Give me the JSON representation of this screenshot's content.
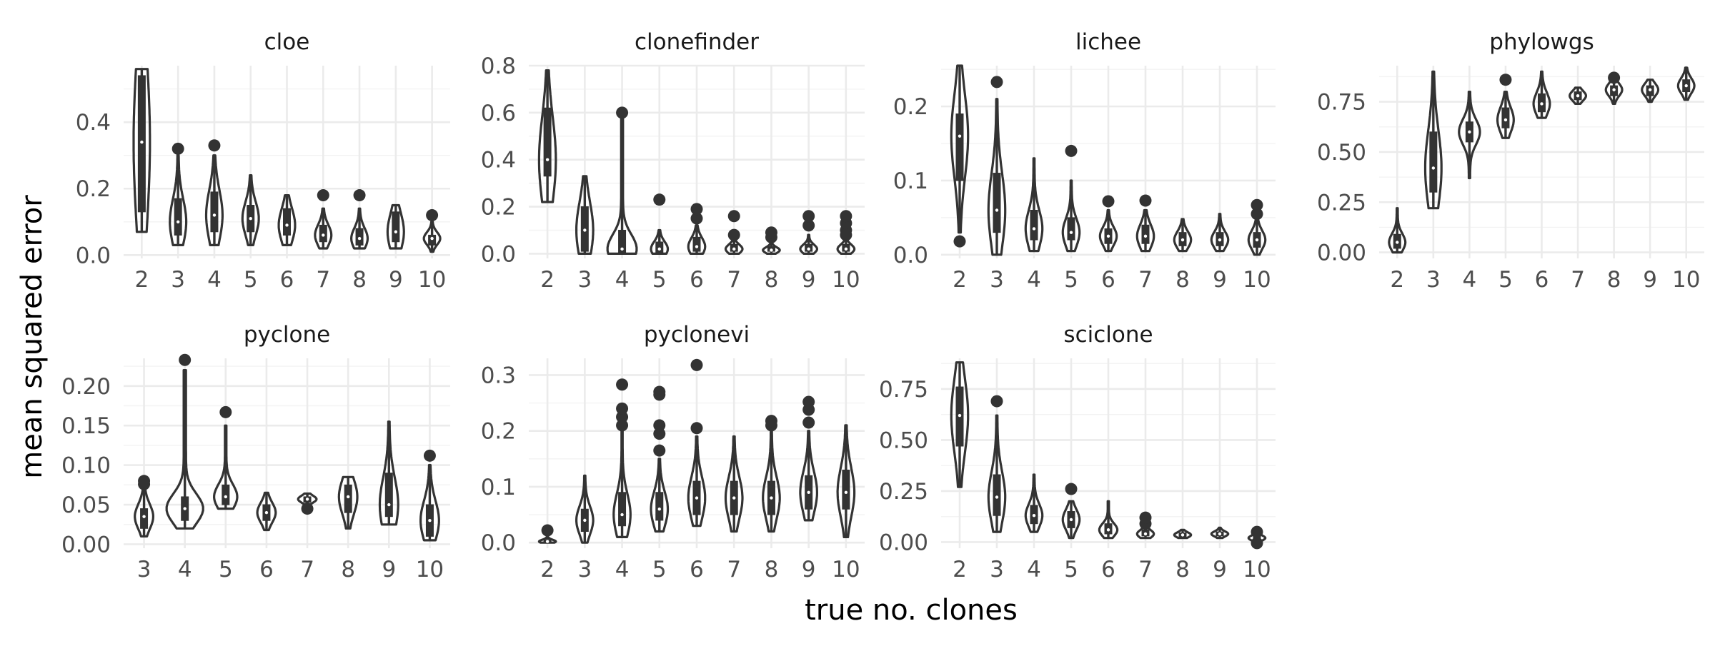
{
  "xlabel": "true no. clones",
  "ylabel": "mean squared error",
  "colors": {
    "ink": "#333333",
    "grid": "#ebebeb",
    "background": "#ffffff"
  },
  "chart_data": [
    {
      "type": "violin",
      "title": "cloe",
      "categories": [
        "2",
        "3",
        "4",
        "5",
        "6",
        "7",
        "8",
        "9",
        "10"
      ],
      "ylim": [
        -0.01,
        0.57
      ],
      "yticks": [
        0.0,
        0.2,
        0.4
      ],
      "ytick_labels": [
        "0.0",
        "0.2",
        "0.4"
      ],
      "series": [
        {
          "x": "2",
          "min": 0.07,
          "max": 0.56,
          "q1": 0.13,
          "median": 0.34,
          "q3": 0.54,
          "outliers": []
        },
        {
          "x": "3",
          "min": 0.03,
          "max": 0.3,
          "q1": 0.06,
          "median": 0.1,
          "q3": 0.17,
          "outliers": [
            0.32
          ]
        },
        {
          "x": "4",
          "min": 0.03,
          "max": 0.3,
          "q1": 0.07,
          "median": 0.12,
          "q3": 0.19,
          "outliers": [
            0.33
          ]
        },
        {
          "x": "5",
          "min": 0.03,
          "max": 0.24,
          "q1": 0.07,
          "median": 0.11,
          "q3": 0.15,
          "outliers": []
        },
        {
          "x": "6",
          "min": 0.03,
          "max": 0.18,
          "q1": 0.06,
          "median": 0.09,
          "q3": 0.14,
          "outliers": []
        },
        {
          "x": "7",
          "min": 0.02,
          "max": 0.14,
          "q1": 0.04,
          "median": 0.06,
          "q3": 0.09,
          "outliers": [
            0.18
          ]
        },
        {
          "x": "8",
          "min": 0.02,
          "max": 0.14,
          "q1": 0.03,
          "median": 0.05,
          "q3": 0.08,
          "outliers": [
            0.18
          ]
        },
        {
          "x": "9",
          "min": 0.02,
          "max": 0.15,
          "q1": 0.04,
          "median": 0.07,
          "q3": 0.13,
          "outliers": []
        },
        {
          "x": "10",
          "min": 0.01,
          "max": 0.1,
          "q1": 0.03,
          "median": 0.05,
          "q3": 0.06,
          "outliers": [
            0.12
          ]
        }
      ]
    },
    {
      "type": "violin",
      "title": "clonefinder",
      "categories": [
        "2",
        "3",
        "4",
        "5",
        "6",
        "7",
        "8",
        "9",
        "10"
      ],
      "ylim": [
        -0.02,
        0.8
      ],
      "yticks": [
        0.0,
        0.2,
        0.4,
        0.6,
        0.8
      ],
      "ytick_labels": [
        "0.0",
        "0.2",
        "0.4",
        "0.6",
        "0.8"
      ],
      "series": [
        {
          "x": "2",
          "min": 0.22,
          "max": 0.78,
          "q1": 0.33,
          "median": 0.4,
          "q3": 0.62,
          "outliers": []
        },
        {
          "x": "3",
          "min": 0.0,
          "max": 0.33,
          "q1": 0.01,
          "median": 0.1,
          "q3": 0.2,
          "outliers": []
        },
        {
          "x": "4",
          "min": 0.0,
          "max": 0.58,
          "q1": 0.0,
          "median": 0.02,
          "q3": 0.1,
          "outliers": [
            0.6
          ]
        },
        {
          "x": "5",
          "min": 0.0,
          "max": 0.1,
          "q1": 0.0,
          "median": 0.02,
          "q3": 0.05,
          "outliers": [
            0.23
          ]
        },
        {
          "x": "6",
          "min": 0.0,
          "max": 0.12,
          "q1": 0.01,
          "median": 0.03,
          "q3": 0.07,
          "outliers": [
            0.15,
            0.19
          ]
        },
        {
          "x": "7",
          "min": 0.0,
          "max": 0.06,
          "q1": 0.01,
          "median": 0.02,
          "q3": 0.04,
          "outliers": [
            0.08,
            0.16
          ]
        },
        {
          "x": "8",
          "min": 0.0,
          "max": 0.05,
          "q1": 0.01,
          "median": 0.015,
          "q3": 0.03,
          "outliers": [
            0.07,
            0.09
          ]
        },
        {
          "x": "9",
          "min": 0.0,
          "max": 0.08,
          "q1": 0.01,
          "median": 0.02,
          "q3": 0.04,
          "outliers": [
            0.12,
            0.16
          ]
        },
        {
          "x": "10",
          "min": 0.0,
          "max": 0.06,
          "q1": 0.01,
          "median": 0.02,
          "q3": 0.04,
          "outliers": [
            0.08,
            0.1,
            0.13,
            0.16
          ]
        }
      ]
    },
    {
      "type": "violin",
      "title": "lichee",
      "categories": [
        "2",
        "3",
        "4",
        "5",
        "6",
        "7",
        "8",
        "9",
        "10"
      ],
      "ylim": [
        -0.005,
        0.255
      ],
      "yticks": [
        0.0,
        0.1,
        0.2
      ],
      "ytick_labels": [
        "0.0",
        "0.1",
        "0.2"
      ],
      "series": [
        {
          "x": "2",
          "min": 0.03,
          "max": 0.255,
          "q1": 0.1,
          "median": 0.16,
          "q3": 0.19,
          "outliers": [
            0.018
          ]
        },
        {
          "x": "3",
          "min": 0.0,
          "max": 0.21,
          "q1": 0.03,
          "median": 0.06,
          "q3": 0.11,
          "outliers": [
            0.233
          ]
        },
        {
          "x": "4",
          "min": 0.005,
          "max": 0.13,
          "q1": 0.02,
          "median": 0.035,
          "q3": 0.06,
          "outliers": []
        },
        {
          "x": "5",
          "min": 0.005,
          "max": 0.1,
          "q1": 0.02,
          "median": 0.03,
          "q3": 0.05,
          "outliers": [
            0.14
          ]
        },
        {
          "x": "6",
          "min": 0.005,
          "max": 0.06,
          "q1": 0.015,
          "median": 0.025,
          "q3": 0.035,
          "outliers": [
            0.072
          ]
        },
        {
          "x": "7",
          "min": 0.005,
          "max": 0.06,
          "q1": 0.015,
          "median": 0.025,
          "q3": 0.04,
          "outliers": [
            0.073
          ]
        },
        {
          "x": "8",
          "min": 0.005,
          "max": 0.048,
          "q1": 0.012,
          "median": 0.02,
          "q3": 0.03,
          "outliers": []
        },
        {
          "x": "9",
          "min": 0.005,
          "max": 0.055,
          "q1": 0.012,
          "median": 0.02,
          "q3": 0.03,
          "outliers": []
        },
        {
          "x": "10",
          "min": 0.0,
          "max": 0.05,
          "q1": 0.01,
          "median": 0.02,
          "q3": 0.03,
          "outliers": [
            0.055,
            0.067
          ]
        }
      ]
    },
    {
      "type": "violin",
      "title": "phylowgs",
      "categories": [
        "2",
        "3",
        "4",
        "5",
        "6",
        "7",
        "8",
        "9",
        "10"
      ],
      "ylim": [
        -0.03,
        0.93
      ],
      "yticks": [
        0.0,
        0.25,
        0.5,
        0.75
      ],
      "ytick_labels": [
        "0.00",
        "0.25",
        "0.50",
        "0.75"
      ],
      "series": [
        {
          "x": "2",
          "min": 0.0,
          "max": 0.22,
          "q1": 0.02,
          "median": 0.05,
          "q3": 0.09,
          "outliers": []
        },
        {
          "x": "3",
          "min": 0.22,
          "max": 0.9,
          "q1": 0.3,
          "median": 0.42,
          "q3": 0.6,
          "outliers": []
        },
        {
          "x": "4",
          "min": 0.37,
          "max": 0.8,
          "q1": 0.55,
          "median": 0.6,
          "q3": 0.65,
          "outliers": []
        },
        {
          "x": "5",
          "min": 0.57,
          "max": 0.8,
          "q1": 0.62,
          "median": 0.66,
          "q3": 0.72,
          "outliers": [
            0.86
          ]
        },
        {
          "x": "6",
          "min": 0.67,
          "max": 0.9,
          "q1": 0.7,
          "median": 0.74,
          "q3": 0.79,
          "outliers": []
        },
        {
          "x": "7",
          "min": 0.74,
          "max": 0.82,
          "q1": 0.76,
          "median": 0.78,
          "q3": 0.8,
          "outliers": []
        },
        {
          "x": "8",
          "min": 0.74,
          "max": 0.85,
          "q1": 0.78,
          "median": 0.81,
          "q3": 0.83,
          "outliers": [
            0.87
          ]
        },
        {
          "x": "9",
          "min": 0.75,
          "max": 0.86,
          "q1": 0.78,
          "median": 0.81,
          "q3": 0.83,
          "outliers": []
        },
        {
          "x": "10",
          "min": 0.76,
          "max": 0.92,
          "q1": 0.8,
          "median": 0.83,
          "q3": 0.86,
          "outliers": []
        }
      ]
    },
    {
      "type": "violin",
      "title": "pyclone",
      "categories": [
        "3",
        "4",
        "5",
        "6",
        "7",
        "8",
        "9",
        "10"
      ],
      "ylim": [
        -0.005,
        0.235
      ],
      "yticks": [
        0.0,
        0.05,
        0.1,
        0.15,
        0.2
      ],
      "ytick_labels": [
        "0.00",
        "0.05",
        "0.10",
        "0.15",
        "0.20"
      ],
      "series": [
        {
          "x": "3",
          "min": 0.01,
          "max": 0.07,
          "q1": 0.02,
          "median": 0.035,
          "q3": 0.045,
          "outliers": [
            0.076,
            0.08
          ]
        },
        {
          "x": "4",
          "min": 0.02,
          "max": 0.22,
          "q1": 0.03,
          "median": 0.045,
          "q3": 0.06,
          "outliers": [
            0.233
          ]
        },
        {
          "x": "5",
          "min": 0.045,
          "max": 0.15,
          "q1": 0.05,
          "median": 0.06,
          "q3": 0.075,
          "outliers": [
            0.167
          ]
        },
        {
          "x": "6",
          "min": 0.018,
          "max": 0.065,
          "q1": 0.03,
          "median": 0.04,
          "q3": 0.05,
          "outliers": []
        },
        {
          "x": "7",
          "min": 0.048,
          "max": 0.064,
          "q1": 0.053,
          "median": 0.057,
          "q3": 0.06,
          "outliers": [
            0.045
          ]
        },
        {
          "x": "8",
          "min": 0.02,
          "max": 0.085,
          "q1": 0.04,
          "median": 0.06,
          "q3": 0.075,
          "outliers": []
        },
        {
          "x": "9",
          "min": 0.025,
          "max": 0.155,
          "q1": 0.035,
          "median": 0.05,
          "q3": 0.09,
          "outliers": []
        },
        {
          "x": "10",
          "min": 0.005,
          "max": 0.1,
          "q1": 0.01,
          "median": 0.03,
          "q3": 0.05,
          "outliers": [
            0.112
          ]
        }
      ]
    },
    {
      "type": "violin",
      "title": "pyclonevi",
      "categories": [
        "2",
        "3",
        "4",
        "5",
        "6",
        "7",
        "8",
        "9",
        "10"
      ],
      "ylim": [
        -0.01,
        0.33
      ],
      "yticks": [
        0.0,
        0.1,
        0.2,
        0.3
      ],
      "ytick_labels": [
        "0.0",
        "0.1",
        "0.2",
        "0.3"
      ],
      "series": [
        {
          "x": "2",
          "min": 0.0,
          "max": 0.01,
          "q1": 0.0,
          "median": 0.002,
          "q3": 0.005,
          "outliers": [
            0.022
          ]
        },
        {
          "x": "3",
          "min": 0.0,
          "max": 0.12,
          "q1": 0.02,
          "median": 0.04,
          "q3": 0.06,
          "outliers": []
        },
        {
          "x": "4",
          "min": 0.01,
          "max": 0.2,
          "q1": 0.03,
          "median": 0.05,
          "q3": 0.09,
          "outliers": [
            0.21,
            0.225,
            0.24,
            0.283
          ]
        },
        {
          "x": "5",
          "min": 0.02,
          "max": 0.15,
          "q1": 0.04,
          "median": 0.06,
          "q3": 0.09,
          "outliers": [
            0.165,
            0.195,
            0.21,
            0.265,
            0.27
          ]
        },
        {
          "x": "6",
          "min": 0.03,
          "max": 0.19,
          "q1": 0.05,
          "median": 0.08,
          "q3": 0.11,
          "outliers": [
            0.205,
            0.318
          ]
        },
        {
          "x": "7",
          "min": 0.02,
          "max": 0.19,
          "q1": 0.05,
          "median": 0.08,
          "q3": 0.11,
          "outliers": []
        },
        {
          "x": "8",
          "min": 0.02,
          "max": 0.2,
          "q1": 0.05,
          "median": 0.08,
          "q3": 0.11,
          "outliers": [
            0.21,
            0.218
          ]
        },
        {
          "x": "9",
          "min": 0.04,
          "max": 0.2,
          "q1": 0.06,
          "median": 0.09,
          "q3": 0.12,
          "outliers": [
            0.215,
            0.238,
            0.252
          ]
        },
        {
          "x": "10",
          "min": 0.01,
          "max": 0.21,
          "q1": 0.06,
          "median": 0.09,
          "q3": 0.13,
          "outliers": []
        }
      ]
    },
    {
      "type": "violin",
      "title": "sciclone",
      "categories": [
        "2",
        "3",
        "4",
        "5",
        "6",
        "7",
        "8",
        "9",
        "10"
      ],
      "ylim": [
        -0.03,
        0.9
      ],
      "yticks": [
        0.0,
        0.25,
        0.5,
        0.75
      ],
      "ytick_labels": [
        "0.00",
        "0.25",
        "0.50",
        "0.75"
      ],
      "series": [
        {
          "x": "2",
          "min": 0.27,
          "max": 0.88,
          "q1": 0.47,
          "median": 0.62,
          "q3": 0.76,
          "outliers": []
        },
        {
          "x": "3",
          "min": 0.05,
          "max": 0.62,
          "q1": 0.13,
          "median": 0.22,
          "q3": 0.33,
          "outliers": [
            0.69
          ]
        },
        {
          "x": "4",
          "min": 0.05,
          "max": 0.33,
          "q1": 0.09,
          "median": 0.13,
          "q3": 0.18,
          "outliers": []
        },
        {
          "x": "5",
          "min": 0.02,
          "max": 0.2,
          "q1": 0.07,
          "median": 0.11,
          "q3": 0.15,
          "outliers": [
            0.26
          ]
        },
        {
          "x": "6",
          "min": 0.02,
          "max": 0.2,
          "q1": 0.04,
          "median": 0.06,
          "q3": 0.09,
          "outliers": []
        },
        {
          "x": "7",
          "min": 0.02,
          "max": 0.1,
          "q1": 0.03,
          "median": 0.04,
          "q3": 0.06,
          "outliers": [
            0.09,
            0.12
          ]
        },
        {
          "x": "8",
          "min": 0.02,
          "max": 0.06,
          "q1": 0.025,
          "median": 0.035,
          "q3": 0.045,
          "outliers": []
        },
        {
          "x": "9",
          "min": 0.02,
          "max": 0.07,
          "q1": 0.03,
          "median": 0.04,
          "q3": 0.05,
          "outliers": []
        },
        {
          "x": "10",
          "min": 0.0,
          "max": 0.04,
          "q1": 0.01,
          "median": 0.02,
          "q3": 0.03,
          "outliers": [
            -0.005,
            0.05
          ]
        }
      ]
    }
  ]
}
